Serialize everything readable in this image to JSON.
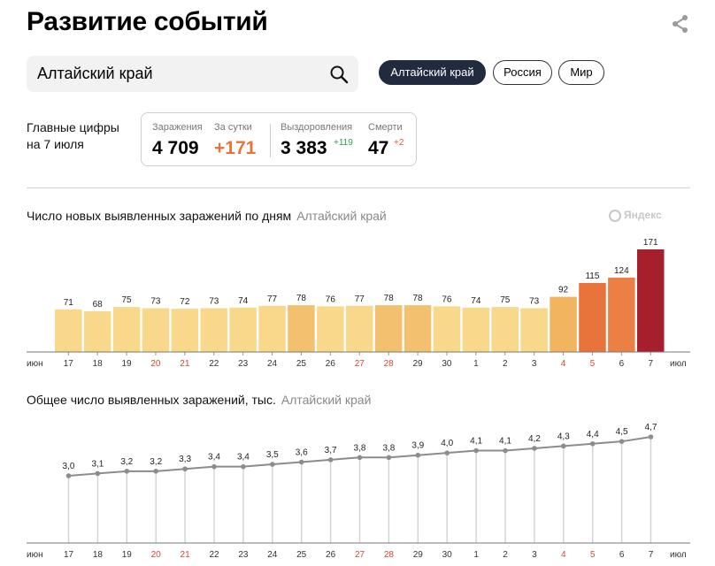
{
  "page": {
    "title": "Развитие событий"
  },
  "search": {
    "value": "Алтайский край"
  },
  "tabs": [
    "Алтайский край",
    "Россия",
    "Мир"
  ],
  "stats": {
    "label_line1": "Главные цифры",
    "label_line2": "на 7 июля",
    "infections_label": "Заражения",
    "infections_value": "4 709",
    "day_label": "За сутки",
    "day_value": "+171",
    "recovered_label": "Выздоровления",
    "recovered_value": "3 383",
    "recovered_delta": "+119",
    "deaths_label": "Смерти",
    "deaths_value": "47",
    "deaths_delta": "+2"
  },
  "watermark": "Яндекс",
  "colors": {
    "accent_orange": "#e8743b",
    "delta_green": "#2e9e4a",
    "delta_red": "#e05a3a",
    "tab_active": "#222a3f"
  },
  "chart_data": [
    {
      "type": "bar",
      "title": "Число новых выявленных заражений по дням",
      "subtitle": "Алтайский край",
      "start_label": "июн",
      "end_label": "июл",
      "categories": [
        "17",
        "18",
        "19",
        "20",
        "21",
        "22",
        "23",
        "24",
        "25",
        "26",
        "27",
        "28",
        "29",
        "30",
        "1",
        "2",
        "3",
        "4",
        "5",
        "6",
        "7"
      ],
      "weekend": [
        false,
        false,
        false,
        true,
        true,
        false,
        false,
        false,
        false,
        false,
        true,
        true,
        false,
        false,
        false,
        false,
        false,
        true,
        true,
        false,
        false
      ],
      "values": [
        71,
        68,
        75,
        73,
        72,
        73,
        74,
        77,
        78,
        76,
        77,
        78,
        78,
        76,
        74,
        75,
        73,
        92,
        115,
        124,
        171
      ],
      "value_labels": [
        "71",
        "68",
        "75",
        "73",
        "72",
        "73",
        "74",
        "77",
        "78",
        "76",
        "77",
        "78",
        "78",
        "76",
        "74",
        "75",
        "73",
        "92",
        "115",
        "124",
        "171"
      ],
      "bar_colors": [
        "#f8d98c",
        "#f8d98c",
        "#f8d98c",
        "#f8d98c",
        "#f8d98c",
        "#f8d98c",
        "#f8d98c",
        "#f8d98c",
        "#f3c070",
        "#f8d98c",
        "#f8d98c",
        "#f3c070",
        "#f3c070",
        "#f8d98c",
        "#f8d98c",
        "#f8d98c",
        "#f8d98c",
        "#f2b45e",
        "#e8743b",
        "#ea8044",
        "#a51f2c"
      ],
      "ylim": [
        0,
        171
      ]
    },
    {
      "type": "line",
      "title": "Общее число выявленных заражений, тыс.",
      "subtitle": "Алтайский край",
      "start_label": "июн",
      "end_label": "июл",
      "categories": [
        "17",
        "18",
        "19",
        "20",
        "21",
        "22",
        "23",
        "24",
        "25",
        "26",
        "27",
        "28",
        "29",
        "30",
        "1",
        "2",
        "3",
        "4",
        "5",
        "6",
        "7"
      ],
      "weekend": [
        false,
        false,
        false,
        true,
        true,
        false,
        false,
        false,
        false,
        false,
        true,
        true,
        false,
        false,
        false,
        false,
        false,
        true,
        true,
        false,
        false
      ],
      "values": [
        3.0,
        3.1,
        3.2,
        3.2,
        3.3,
        3.4,
        3.4,
        3.5,
        3.6,
        3.7,
        3.8,
        3.8,
        3.9,
        4.0,
        4.1,
        4.1,
        4.2,
        4.3,
        4.4,
        4.5,
        4.7
      ],
      "value_labels": [
        "3,0",
        "3,1",
        "3,2",
        "3,2",
        "3,3",
        "3,4",
        "3,4",
        "3,5",
        "3,6",
        "3,7",
        "3,8",
        "3,8",
        "3,9",
        "4,0",
        "4,1",
        "4,1",
        "4,2",
        "4,3",
        "4,4",
        "4,5",
        "4,7"
      ],
      "ylim": [
        0,
        4.7
      ]
    }
  ]
}
